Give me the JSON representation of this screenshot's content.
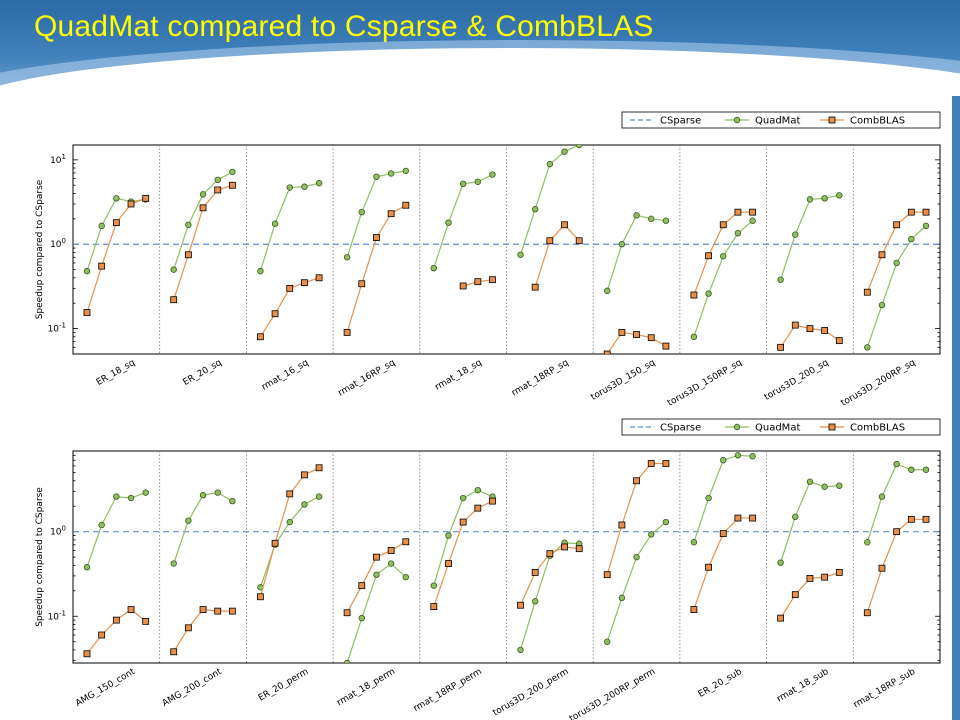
{
  "slide": {
    "title": "QuadMat compared to Csparse & CombBLAS"
  },
  "colors": {
    "csparse": "#5b8fd6",
    "quadmat": "#8fbf5f",
    "combblas": "#e8904a",
    "title": "#ffff00"
  },
  "chart_data": [
    {
      "type": "line",
      "ylabel": "Speedup compared to CSparse",
      "yscale": "log",
      "ylim": [
        0.05,
        15
      ],
      "yticks": [
        "10^-1",
        "10^0",
        "10^1"
      ],
      "legend": {
        "position": "top-right",
        "entries": [
          "CSparse",
          "QuadMat",
          "CombBLAS"
        ]
      },
      "groups": [
        {
          "name": "ER_18_sq",
          "quadmat": [
            0.48,
            1.65,
            3.5,
            3.2,
            3.4
          ],
          "combblas": [
            0.155,
            0.55,
            1.8,
            3.0,
            3.5
          ]
        },
        {
          "name": "ER_20_sq",
          "quadmat": [
            0.5,
            1.7,
            3.9,
            5.8,
            7.2
          ],
          "combblas": [
            0.22,
            0.75,
            2.7,
            4.4,
            5.0
          ]
        },
        {
          "name": "rmat_16_sq",
          "quadmat": [
            0.48,
            1.75,
            4.7,
            4.8,
            5.3
          ],
          "combblas": [
            0.08,
            0.15,
            0.3,
            0.35,
            0.4
          ]
        },
        {
          "name": "rmat_16RP_sq",
          "quadmat": [
            0.7,
            2.4,
            6.3,
            6.9,
            7.4
          ],
          "combblas": [
            0.09,
            0.34,
            1.2,
            2.3,
            2.9
          ]
        },
        {
          "name": "rmat_18_sq",
          "quadmat": [
            0.52,
            1.8,
            5.2,
            5.5,
            6.7
          ],
          "combblas": [
            null,
            null,
            0.32,
            0.36,
            0.38
          ]
        },
        {
          "name": "rmat_18RP_sq",
          "quadmat": [
            0.75,
            2.6,
            8.9,
            12.5,
            15
          ],
          "combblas": [
            null,
            0.31,
            1.1,
            1.7,
            1.1
          ]
        },
        {
          "name": "torus3D_150_sq",
          "quadmat": [
            0.28,
            1.0,
            2.2,
            2.0,
            1.9
          ],
          "combblas": [
            0.05,
            0.09,
            0.085,
            0.078,
            0.062
          ]
        },
        {
          "name": "torus3D_150RP_sq",
          "quadmat": [
            0.08,
            0.26,
            0.72,
            1.35,
            1.9
          ],
          "combblas": [
            0.25,
            0.73,
            1.7,
            2.4,
            2.4
          ]
        },
        {
          "name": "torus3D_200_sq",
          "quadmat": [
            0.38,
            1.3,
            3.4,
            3.5,
            3.8
          ],
          "combblas": [
            0.06,
            0.11,
            0.1,
            0.095,
            0.072
          ]
        },
        {
          "name": "torus3D_200RP_sq",
          "quadmat": [
            0.06,
            0.19,
            0.6,
            1.15,
            1.65
          ],
          "combblas": [
            0.27,
            0.75,
            1.7,
            2.4,
            2.4
          ]
        }
      ]
    },
    {
      "type": "line",
      "ylabel": "Speedup compared to CSparse",
      "yscale": "log",
      "ylim": [
        0.028,
        9
      ],
      "yticks": [
        "10^-1",
        "10^0"
      ],
      "legend": {
        "position": "top-right",
        "entries": [
          "CSparse",
          "QuadMat",
          "CombBLAS"
        ]
      },
      "groups": [
        {
          "name": "AMG_150_cont",
          "quadmat": [
            0.38,
            1.2,
            2.6,
            2.5,
            2.9
          ],
          "combblas": [
            0.036,
            0.06,
            0.09,
            0.12,
            0.087
          ]
        },
        {
          "name": "AMG_200_cont",
          "quadmat": [
            0.42,
            1.35,
            2.7,
            2.9,
            2.3
          ],
          "combblas": [
            0.038,
            0.073,
            0.12,
            0.115,
            0.115
          ]
        },
        {
          "name": "ER_20_perm",
          "quadmat": [
            0.22,
            0.7,
            1.3,
            2.1,
            2.6
          ],
          "combblas": [
            0.17,
            0.73,
            2.8,
            4.7,
            5.7
          ]
        },
        {
          "name": "rmat_18_perm",
          "quadmat": [
            0.028,
            0.095,
            0.31,
            0.42,
            0.29
          ],
          "combblas": [
            0.11,
            0.23,
            0.5,
            0.6,
            0.76
          ]
        },
        {
          "name": "rmat_18RP_perm",
          "quadmat": [
            0.23,
            0.9,
            2.5,
            3.1,
            2.6
          ],
          "combblas": [
            0.13,
            0.42,
            1.3,
            1.9,
            2.3
          ]
        },
        {
          "name": "torus3D_200_perm",
          "quadmat": [
            0.04,
            0.15,
            0.52,
            0.74,
            0.72
          ],
          "combblas": [
            0.135,
            0.33,
            0.55,
            0.66,
            0.63
          ]
        },
        {
          "name": "torus3D_200RP_perm",
          "quadmat": [
            0.05,
            0.165,
            0.5,
            0.93,
            1.3
          ],
          "combblas": [
            0.31,
            1.2,
            4.0,
            6.4,
            6.4
          ]
        },
        {
          "name": "ER_20_sub",
          "quadmat": [
            0.75,
            2.5,
            7.0,
            8.0,
            7.8
          ],
          "combblas": [
            0.12,
            0.38,
            0.95,
            1.45,
            1.45
          ]
        },
        {
          "name": "rmat_18_sub",
          "quadmat": [
            0.43,
            1.5,
            3.9,
            3.4,
            3.5
          ],
          "combblas": [
            0.095,
            0.18,
            0.28,
            0.29,
            0.33
          ]
        },
        {
          "name": "rmat_18RP_sub",
          "quadmat": [
            0.75,
            2.6,
            6.3,
            5.4,
            5.4
          ],
          "combblas": [
            0.11,
            0.37,
            1.0,
            1.4,
            1.4
          ]
        }
      ]
    }
  ]
}
